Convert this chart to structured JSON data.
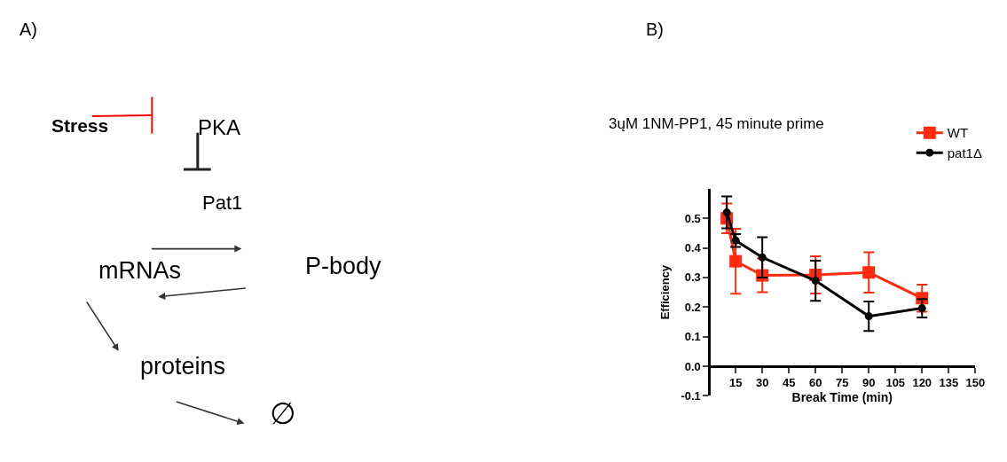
{
  "chart_data": [
    {
      "type": "other",
      "annotations": [
        "A)",
        "Stress",
        "PKA",
        "Pat1",
        "mRNAs",
        "P-body",
        "proteins",
        "∅"
      ]
    },
    {
      "type": "line",
      "title": "3ųM 1NM-PP1, 45 minute prime",
      "xlabel": "Break Time (min)",
      "ylabel": "Efficiency",
      "annotations": [
        "B)"
      ],
      "x": [
        10,
        15,
        30,
        60,
        90,
        120
      ],
      "series": [
        {
          "name": "WT",
          "color": "#ff2a0f",
          "marker": "square",
          "values": [
            0.5,
            0.355,
            0.307,
            0.309,
            0.317,
            0.23
          ],
          "errors": [
            0.05,
            0.11,
            0.057,
            0.063,
            0.068,
            0.046
          ]
        },
        {
          "name": "pat1Δ",
          "color": "#000000",
          "marker": "circle",
          "values": [
            0.52,
            0.425,
            0.368,
            0.289,
            0.169,
            0.196
          ],
          "errors": [
            0.054,
            0.022,
            0.068,
            0.068,
            0.05,
            0.031
          ]
        }
      ],
      "xlim": [
        0,
        150
      ],
      "xticks": [
        15,
        30,
        45,
        60,
        75,
        90,
        105,
        120,
        135,
        150
      ],
      "ylim": [
        -0.1,
        0.6
      ],
      "yticks": [
        -0.1,
        {
          "value": 0,
          "label": "0.0"
        },
        0.1,
        0.2,
        0.3,
        0.4,
        0.5
      ],
      "legend": "top right",
      "grid": false,
      "line_style": "solid"
    }
  ]
}
